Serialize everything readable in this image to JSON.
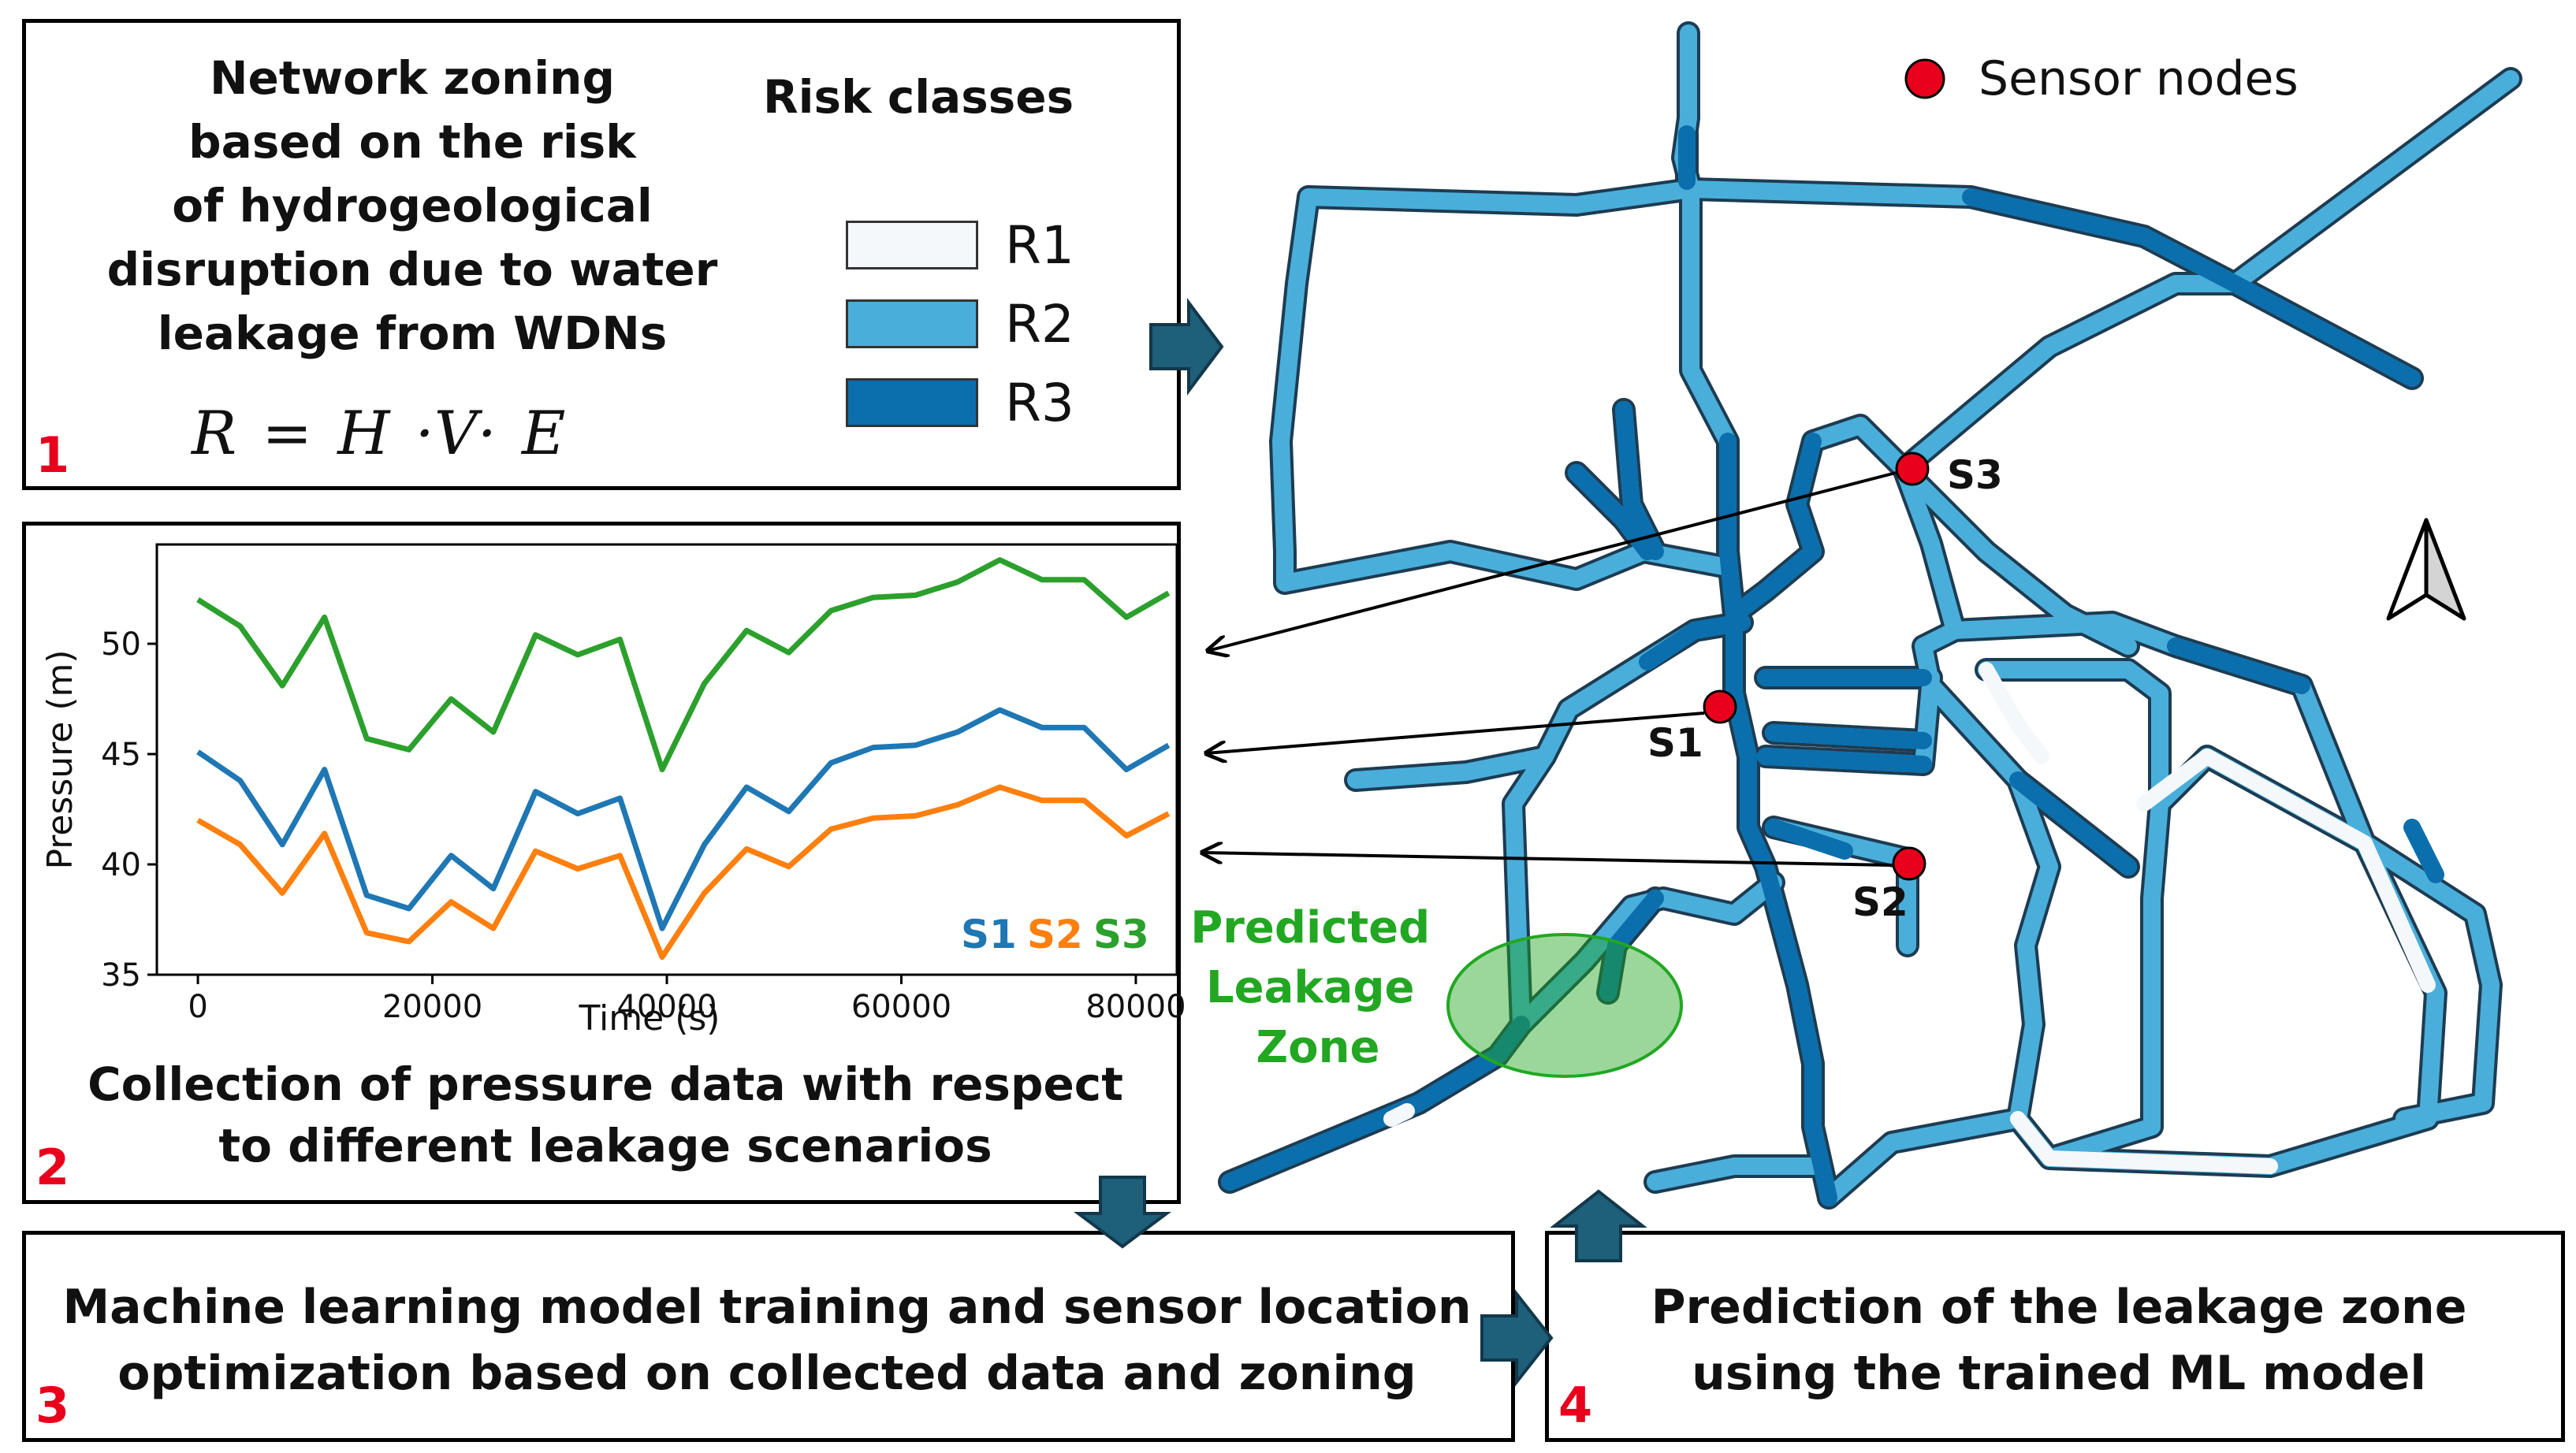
{
  "step1": {
    "number": "1",
    "title_lines": [
      "Network zoning",
      "based on the risk",
      "of hydrogeological",
      "disruption due to water",
      "leakage from WDNs"
    ],
    "formula": "R = H ·V· E"
  },
  "legend": {
    "title": "Risk classes",
    "items": [
      {
        "label": "R1",
        "color": "#f4f8fb"
      },
      {
        "label": "R2",
        "color": "#4aaedb"
      },
      {
        "label": "R3",
        "color": "#0b6fad"
      }
    ]
  },
  "step2": {
    "number": "2",
    "title_lines": [
      "Collection of pressure data with respect",
      "to different leakage scenarios"
    ]
  },
  "chart_data": {
    "type": "line",
    "title": "",
    "xlabel": "Time (s)",
    "ylabel": "Pressure (m)",
    "xlim": [
      -3500,
      83500
    ],
    "ylim": [
      35,
      54.5
    ],
    "xticks": [
      0,
      20000,
      40000,
      60000,
      80000
    ],
    "yticks": [
      35,
      40,
      45,
      50
    ],
    "x": [
      0,
      3600,
      7200,
      10800,
      14400,
      18000,
      21600,
      25200,
      28800,
      32400,
      36000,
      39600,
      43200,
      46800,
      50400,
      54000,
      57600,
      61200,
      64800,
      68400,
      72000,
      75600,
      79200,
      82800
    ],
    "series": [
      {
        "name": "S1",
        "color": "#1f77b4",
        "values": [
          45.1,
          43.8,
          40.9,
          44.3,
          38.6,
          38.0,
          40.4,
          38.9,
          43.3,
          42.3,
          43.0,
          37.1,
          40.9,
          43.5,
          42.4,
          44.6,
          45.3,
          45.4,
          46.0,
          47.0,
          46.2,
          46.2,
          44.3,
          45.4
        ]
      },
      {
        "name": "S2",
        "color": "#ff7f0e",
        "values": [
          42.0,
          40.9,
          38.7,
          41.4,
          36.9,
          36.5,
          38.3,
          37.1,
          40.6,
          39.8,
          40.4,
          35.8,
          38.7,
          40.7,
          39.9,
          41.6,
          42.1,
          42.2,
          42.7,
          43.5,
          42.9,
          42.9,
          41.3,
          42.3
        ]
      },
      {
        "name": "S3",
        "color": "#2ca02c",
        "values": [
          52.0,
          50.8,
          48.1,
          51.2,
          45.7,
          45.2,
          47.5,
          46.0,
          50.4,
          49.5,
          50.2,
          44.3,
          48.2,
          50.6,
          49.6,
          51.5,
          52.1,
          52.2,
          52.8,
          53.8,
          52.9,
          52.9,
          51.2,
          52.3
        ]
      }
    ],
    "legend_labels": [
      "S1",
      "S2",
      "S3"
    ],
    "legend_position": "bottom-right"
  },
  "step3": {
    "number": "3",
    "title_lines": [
      "Machine learning model training and sensor location",
      "optimization based on collected data and zoning"
    ]
  },
  "step4": {
    "number": "4",
    "title_lines": [
      "Prediction of the leakage zone",
      "using the trained ML model"
    ]
  },
  "map": {
    "sensor_legend_label": "Sensor nodes",
    "sensors": [
      "S1",
      "S2",
      "S3"
    ],
    "predicted_zone_lines": [
      "Predicted",
      "Leakage",
      "Zone"
    ],
    "zone_color": "#22a722",
    "sensor_color": "#e8001c"
  }
}
